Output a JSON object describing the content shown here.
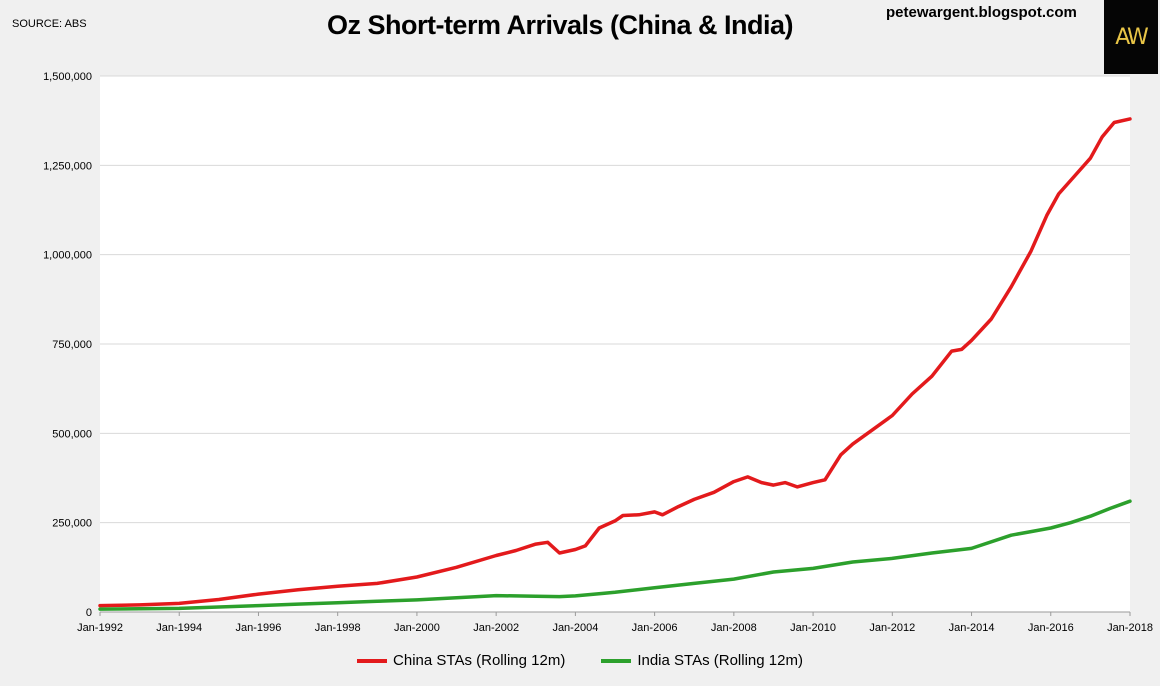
{
  "header": {
    "source": "SOURCE: ABS",
    "title": "Oz Short-term Arrivals (China & India)",
    "blog": "petewargent.blogspot.com",
    "logo_text": "AW"
  },
  "chart_data": {
    "type": "line",
    "title": "Oz Short-term Arrivals (China & India)",
    "xlabel": "",
    "ylabel": "",
    "x_range": [
      1992,
      2018
    ],
    "ylim": [
      0,
      1500000
    ],
    "y_ticks": [
      {
        "value": 0,
        "label": "0"
      },
      {
        "value": 250000,
        "label": "250,000"
      },
      {
        "value": 500000,
        "label": "500,000"
      },
      {
        "value": 750000,
        "label": "750,000"
      },
      {
        "value": 1000000,
        "label": "1,000,000"
      },
      {
        "value": 1250000,
        "label": "1,250,000"
      },
      {
        "value": 1500000,
        "label": "1,500,000"
      }
    ],
    "x_ticks": [
      {
        "value": 1992,
        "label": "Jan-1992"
      },
      {
        "value": 1994,
        "label": "Jan-1994"
      },
      {
        "value": 1996,
        "label": "Jan-1996"
      },
      {
        "value": 1998,
        "label": "Jan-1998"
      },
      {
        "value": 2000,
        "label": "Jan-2000"
      },
      {
        "value": 2002,
        "label": "Jan-2002"
      },
      {
        "value": 2004,
        "label": "Jan-2004"
      },
      {
        "value": 2006,
        "label": "Jan-2006"
      },
      {
        "value": 2008,
        "label": "Jan-2008"
      },
      {
        "value": 2010,
        "label": "Jan-2010"
      },
      {
        "value": 2012,
        "label": "Jan-2012"
      },
      {
        "value": 2014,
        "label": "Jan-2014"
      },
      {
        "value": 2016,
        "label": "Jan-2016"
      },
      {
        "value": 2018,
        "label": "Jan-2018"
      }
    ],
    "grid": true,
    "legend_position": "bottom",
    "series": [
      {
        "name": "China STAs (Rolling 12m)",
        "color": "#e31a1c",
        "points": [
          [
            1992.0,
            18000
          ],
          [
            1993.0,
            20000
          ],
          [
            1994.0,
            24000
          ],
          [
            1995.0,
            35000
          ],
          [
            1996.0,
            50000
          ],
          [
            1997.0,
            62000
          ],
          [
            1998.0,
            72000
          ],
          [
            1999.0,
            80000
          ],
          [
            2000.0,
            98000
          ],
          [
            2001.0,
            125000
          ],
          [
            2002.0,
            158000
          ],
          [
            2002.5,
            172000
          ],
          [
            2003.0,
            190000
          ],
          [
            2003.3,
            195000
          ],
          [
            2003.6,
            165000
          ],
          [
            2004.0,
            175000
          ],
          [
            2004.25,
            185000
          ],
          [
            2004.6,
            235000
          ],
          [
            2005.0,
            255000
          ],
          [
            2005.2,
            270000
          ],
          [
            2005.6,
            272000
          ],
          [
            2006.0,
            280000
          ],
          [
            2006.2,
            272000
          ],
          [
            2006.6,
            295000
          ],
          [
            2007.0,
            315000
          ],
          [
            2007.5,
            335000
          ],
          [
            2008.0,
            365000
          ],
          [
            2008.35,
            378000
          ],
          [
            2008.7,
            362000
          ],
          [
            2009.0,
            355000
          ],
          [
            2009.3,
            362000
          ],
          [
            2009.6,
            350000
          ],
          [
            2010.0,
            362000
          ],
          [
            2010.3,
            370000
          ],
          [
            2010.7,
            440000
          ],
          [
            2011.0,
            470000
          ],
          [
            2011.5,
            510000
          ],
          [
            2012.0,
            550000
          ],
          [
            2012.5,
            610000
          ],
          [
            2013.0,
            660000
          ],
          [
            2013.5,
            730000
          ],
          [
            2013.75,
            735000
          ],
          [
            2014.0,
            760000
          ],
          [
            2014.5,
            820000
          ],
          [
            2015.0,
            910000
          ],
          [
            2015.5,
            1010000
          ],
          [
            2015.9,
            1110000
          ],
          [
            2016.2,
            1170000
          ],
          [
            2016.6,
            1220000
          ],
          [
            2017.0,
            1270000
          ],
          [
            2017.3,
            1330000
          ],
          [
            2017.6,
            1370000
          ],
          [
            2018.0,
            1380000
          ]
        ]
      },
      {
        "name": "India STAs (Rolling 12m)",
        "color": "#2ca02c",
        "points": [
          [
            1992.0,
            8000
          ],
          [
            1993.0,
            9000
          ],
          [
            1994.0,
            10000
          ],
          [
            1995.0,
            14000
          ],
          [
            1996.0,
            18000
          ],
          [
            1997.0,
            22000
          ],
          [
            1998.0,
            26000
          ],
          [
            1999.0,
            30000
          ],
          [
            2000.0,
            34000
          ],
          [
            2001.0,
            40000
          ],
          [
            2002.0,
            46000
          ],
          [
            2003.0,
            44000
          ],
          [
            2003.6,
            43000
          ],
          [
            2004.0,
            45000
          ],
          [
            2004.7,
            52000
          ],
          [
            2005.0,
            55000
          ],
          [
            2006.0,
            68000
          ],
          [
            2007.0,
            80000
          ],
          [
            2008.0,
            92000
          ],
          [
            2009.0,
            112000
          ],
          [
            2010.0,
            122000
          ],
          [
            2011.0,
            140000
          ],
          [
            2012.0,
            150000
          ],
          [
            2013.0,
            165000
          ],
          [
            2014.0,
            178000
          ],
          [
            2015.0,
            215000
          ],
          [
            2015.5,
            225000
          ],
          [
            2016.0,
            235000
          ],
          [
            2016.5,
            250000
          ],
          [
            2017.0,
            268000
          ],
          [
            2017.5,
            290000
          ],
          [
            2018.0,
            310000
          ]
        ]
      }
    ]
  }
}
